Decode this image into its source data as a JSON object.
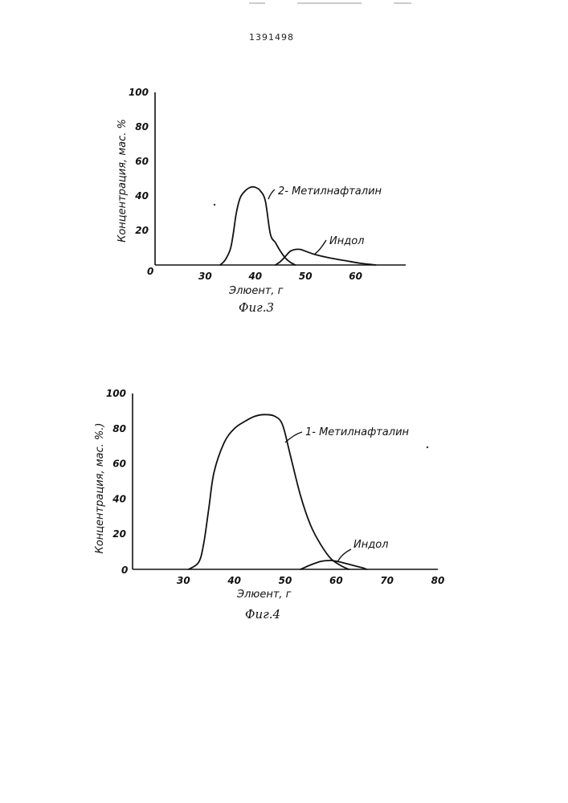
{
  "document": {
    "number": "1391498"
  },
  "chart_data": [
    {
      "type": "line",
      "caption": "Фиг.3",
      "xlabel": "Элюент, г",
      "ylabel": "Концентрация, мас. %",
      "origin_label": "0",
      "xlim": [
        20,
        70
      ],
      "ylim": [
        0,
        100
      ],
      "xticks": [
        30,
        40,
        50,
        60
      ],
      "yticks": [
        20,
        40,
        60,
        80,
        100
      ],
      "series": [
        {
          "name": "2- Метилнафталин",
          "x": [
            33,
            34,
            35,
            35.6,
            36.2,
            37,
            38,
            39,
            40,
            41,
            42,
            43,
            44,
            45,
            46,
            47,
            48
          ],
          "y": [
            0,
            3,
            9,
            18,
            30,
            39,
            43,
            45,
            45,
            43,
            37,
            18,
            13,
            8,
            4,
            1.5,
            0
          ]
        },
        {
          "name": "Индол",
          "x": [
            44,
            45,
            46,
            47,
            48,
            49,
            50,
            52,
            55,
            58,
            61,
            64
          ],
          "y": [
            0,
            2,
            5,
            8,
            9,
            9,
            8,
            6,
            4,
            2.5,
            1,
            0
          ]
        }
      ]
    },
    {
      "type": "line",
      "caption": "Фиг.4",
      "xlabel": "Элюент, г",
      "ylabel": "Концентрация, мас. %.)",
      "origin_label": "0",
      "xlim": [
        20,
        80
      ],
      "ylim": [
        0,
        100
      ],
      "xticks": [
        30,
        40,
        50,
        60,
        70,
        80
      ],
      "yticks": [
        20,
        40,
        60,
        80,
        100
      ],
      "series": [
        {
          "name": "1- Метилнафталин",
          "x": [
            31,
            33,
            34,
            35,
            36,
            38,
            40,
            42,
            44,
            46,
            48,
            49.5,
            51,
            53,
            55,
            57,
            59,
            61,
            62.5
          ],
          "y": [
            0,
            4,
            15,
            35,
            55,
            72,
            80,
            84,
            87,
            88,
            87,
            82,
            65,
            42,
            25,
            14,
            6,
            2,
            0
          ]
        },
        {
          "name": "Индол",
          "x": [
            53,
            55,
            57,
            59,
            61,
            63,
            65,
            66
          ],
          "y": [
            0,
            2.5,
            4.5,
            5,
            4,
            2.5,
            1,
            0
          ]
        }
      ]
    }
  ]
}
